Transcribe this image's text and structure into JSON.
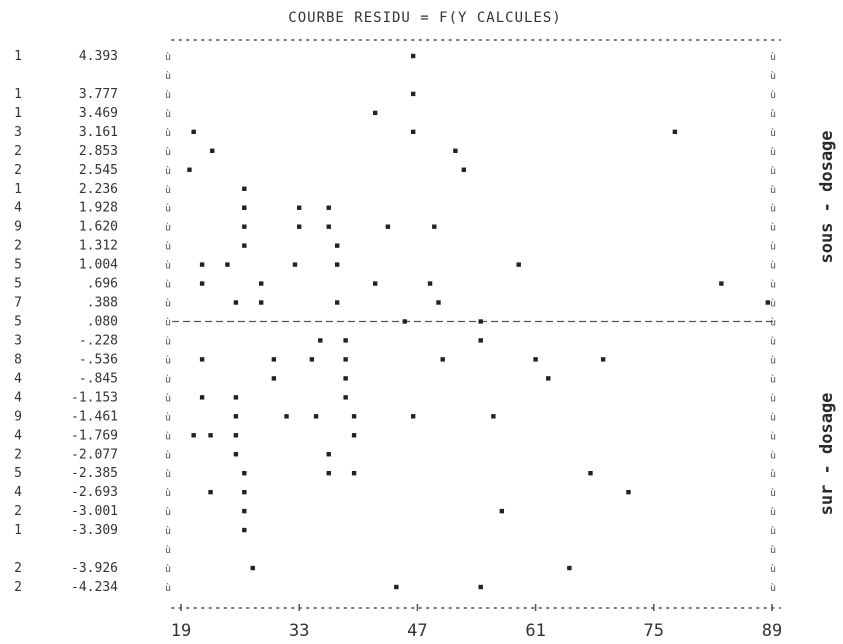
{
  "chart_data": {
    "type": "scatter",
    "title": "COURBE RESIDU = F(Y CALCULES)",
    "x_ticks": [
      19,
      33,
      47,
      61,
      75,
      89
    ],
    "xlim": [
      19,
      89
    ],
    "ylim": [
      -4.234,
      4.393
    ],
    "rows": [
      {
        "count": "1",
        "value": "4.393"
      },
      {
        "count": "",
        "value": ""
      },
      {
        "count": "1",
        "value": "3.777"
      },
      {
        "count": "1",
        "value": "3.469"
      },
      {
        "count": "3",
        "value": "3.161"
      },
      {
        "count": "2",
        "value": "2.853"
      },
      {
        "count": "2",
        "value": "2.545"
      },
      {
        "count": "1",
        "value": "2.236"
      },
      {
        "count": "4",
        "value": "1.928"
      },
      {
        "count": "9",
        "value": "1.620"
      },
      {
        "count": "2",
        "value": "1.312"
      },
      {
        "count": "5",
        "value": "1.004"
      },
      {
        "count": "5",
        "value": ".696"
      },
      {
        "count": "7",
        "value": ".388"
      },
      {
        "count": "5",
        "value": ".080"
      },
      {
        "count": "3",
        "value": "-.228"
      },
      {
        "count": "8",
        "value": "-.536"
      },
      {
        "count": "4",
        "value": "-.845"
      },
      {
        "count": "4",
        "value": "-1.153"
      },
      {
        "count": "9",
        "value": "-1.461"
      },
      {
        "count": "4",
        "value": "-1.769"
      },
      {
        "count": "2",
        "value": "-2.077"
      },
      {
        "count": "5",
        "value": "-2.385"
      },
      {
        "count": "4",
        "value": "-2.693"
      },
      {
        "count": "2",
        "value": "-3.001"
      },
      {
        "count": "1",
        "value": "-3.309"
      },
      {
        "count": "",
        "value": ""
      },
      {
        "count": "2",
        "value": "-3.926"
      },
      {
        "count": "2",
        "value": "-4.234"
      }
    ],
    "reference_line_y": 0.08,
    "points": [
      {
        "x": 46.5,
        "y": 4.393
      },
      {
        "x": 46.5,
        "y": 3.777
      },
      {
        "x": 42.0,
        "y": 3.469
      },
      {
        "x": 46.5,
        "y": 3.161
      },
      {
        "x": 20.5,
        "y": 3.161
      },
      {
        "x": 77.5,
        "y": 3.161
      },
      {
        "x": 22.7,
        "y": 2.853
      },
      {
        "x": 51.5,
        "y": 2.853
      },
      {
        "x": 20.0,
        "y": 2.545
      },
      {
        "x": 52.5,
        "y": 2.545
      },
      {
        "x": 26.5,
        "y": 2.236
      },
      {
        "x": 26.5,
        "y": 1.928
      },
      {
        "x": 33.0,
        "y": 1.928
      },
      {
        "x": 36.5,
        "y": 1.928
      },
      {
        "x": 26.5,
        "y": 1.928
      },
      {
        "x": 26.5,
        "y": 1.62
      },
      {
        "x": 33.0,
        "y": 1.62
      },
      {
        "x": 36.5,
        "y": 1.62
      },
      {
        "x": 43.5,
        "y": 1.62
      },
      {
        "x": 49.0,
        "y": 1.62
      },
      {
        "x": 26.5,
        "y": 1.312
      },
      {
        "x": 37.5,
        "y": 1.312
      },
      {
        "x": 21.5,
        "y": 1.004
      },
      {
        "x": 24.5,
        "y": 1.004
      },
      {
        "x": 32.5,
        "y": 1.004
      },
      {
        "x": 37.5,
        "y": 1.004
      },
      {
        "x": 59.0,
        "y": 1.004
      },
      {
        "x": 21.5,
        "y": 0.696
      },
      {
        "x": 28.5,
        "y": 0.696
      },
      {
        "x": 42.0,
        "y": 0.696
      },
      {
        "x": 48.5,
        "y": 0.696
      },
      {
        "x": 83.0,
        "y": 0.696
      },
      {
        "x": 25.5,
        "y": 0.388
      },
      {
        "x": 28.5,
        "y": 0.388
      },
      {
        "x": 37.5,
        "y": 0.388
      },
      {
        "x": 49.5,
        "y": 0.388
      },
      {
        "x": 88.5,
        "y": 0.388
      },
      {
        "x": 45.5,
        "y": 0.08
      },
      {
        "x": 54.5,
        "y": 0.08
      },
      {
        "x": 35.5,
        "y": -0.228
      },
      {
        "x": 38.5,
        "y": -0.228
      },
      {
        "x": 54.5,
        "y": -0.228
      },
      {
        "x": 21.5,
        "y": -0.536
      },
      {
        "x": 30.0,
        "y": -0.536
      },
      {
        "x": 34.5,
        "y": -0.536
      },
      {
        "x": 38.5,
        "y": -0.536
      },
      {
        "x": 50.0,
        "y": -0.536
      },
      {
        "x": 61.0,
        "y": -0.536
      },
      {
        "x": 69.0,
        "y": -0.536
      },
      {
        "x": 30.0,
        "y": -0.845
      },
      {
        "x": 38.5,
        "y": -0.845
      },
      {
        "x": 62.5,
        "y": -0.845
      },
      {
        "x": 21.5,
        "y": -1.153
      },
      {
        "x": 25.5,
        "y": -1.153
      },
      {
        "x": 38.5,
        "y": -1.153
      },
      {
        "x": 25.5,
        "y": -1.461
      },
      {
        "x": 31.5,
        "y": -1.461
      },
      {
        "x": 35.0,
        "y": -1.461
      },
      {
        "x": 39.5,
        "y": -1.461
      },
      {
        "x": 46.5,
        "y": -1.461
      },
      {
        "x": 56.0,
        "y": -1.461
      },
      {
        "x": 20.5,
        "y": -1.769
      },
      {
        "x": 22.5,
        "y": -1.769
      },
      {
        "x": 25.5,
        "y": -1.769
      },
      {
        "x": 39.5,
        "y": -1.769
      },
      {
        "x": 25.5,
        "y": -2.077
      },
      {
        "x": 36.5,
        "y": -2.077
      },
      {
        "x": 26.5,
        "y": -2.385
      },
      {
        "x": 36.5,
        "y": -2.385
      },
      {
        "x": 39.5,
        "y": -2.385
      },
      {
        "x": 67.5,
        "y": -2.385
      },
      {
        "x": 22.5,
        "y": -2.693
      },
      {
        "x": 26.5,
        "y": -2.693
      },
      {
        "x": 72.0,
        "y": -2.693
      },
      {
        "x": 26.5,
        "y": -3.001
      },
      {
        "x": 57.0,
        "y": -3.001
      },
      {
        "x": 26.5,
        "y": -3.309
      },
      {
        "x": 27.5,
        "y": -3.926
      },
      {
        "x": 65.0,
        "y": -3.926
      },
      {
        "x": 44.5,
        "y": -4.234
      },
      {
        "x": 54.5,
        "y": -4.234
      }
    ],
    "side_labels": {
      "upper": "sous - dosage",
      "lower": "sur - dosage"
    }
  },
  "glyphs": {
    "edge_mark": "ù",
    "point_mark": "*"
  },
  "colors": {
    "ink": "#222222",
    "background": "#ffffff"
  }
}
